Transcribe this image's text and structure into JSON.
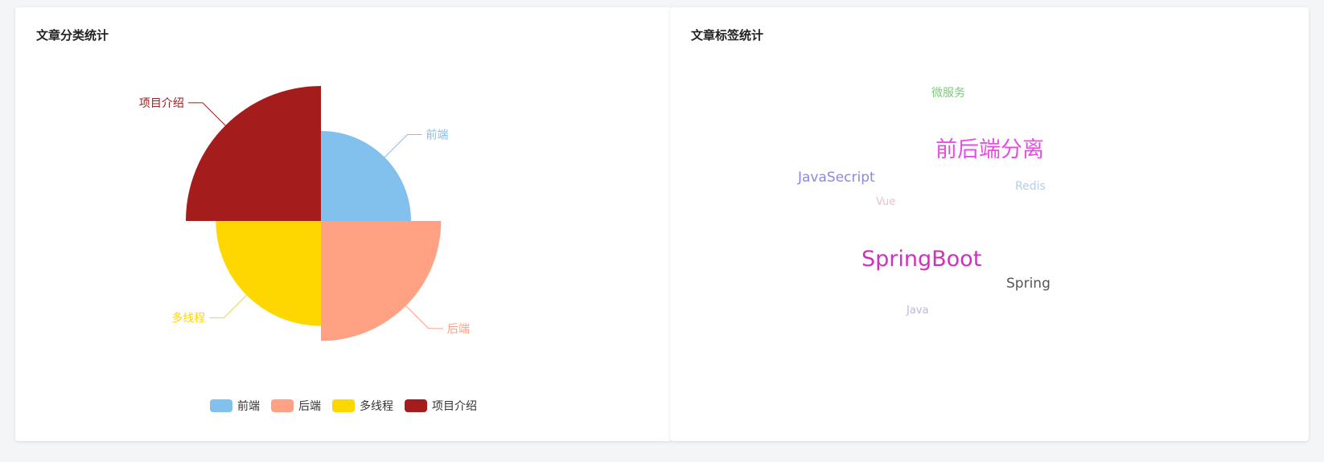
{
  "cards": {
    "category": {
      "title": "文章分类统计"
    },
    "tags": {
      "title": "文章标签统计"
    }
  },
  "chart_data": [
    {
      "type": "pie",
      "subtype": "rose",
      "title": "文章分类统计",
      "series": [
        {
          "name": "前端",
          "value": 2,
          "color": "#82C0EE"
        },
        {
          "name": "后端",
          "value": 4,
          "color": "#FFA182"
        },
        {
          "name": "多线程",
          "value": 3,
          "color": "#FFD700"
        },
        {
          "name": "项目介绍",
          "value": 5,
          "color": "#A51C1C"
        }
      ],
      "legend_position": "bottom"
    },
    {
      "type": "wordcloud",
      "title": "文章标签统计",
      "words": [
        {
          "text": "微服务",
          "weight": 2,
          "color": "#7DC97D"
        },
        {
          "text": "前后端分离",
          "weight": 5,
          "color": "#E84CE3"
        },
        {
          "text": "JavaSecript",
          "weight": 3,
          "color": "#8A88E3"
        },
        {
          "text": "Redis",
          "weight": 2,
          "color": "#B5CDEB"
        },
        {
          "text": "Vue",
          "weight": 1,
          "color": "#E6C1D3"
        },
        {
          "text": "SpringBoot",
          "weight": 5,
          "color": "#D12FC0"
        },
        {
          "text": "Spring",
          "weight": 3,
          "color": "#555555"
        },
        {
          "text": "Java",
          "weight": 1,
          "color": "#B9B8DE"
        }
      ]
    }
  ]
}
